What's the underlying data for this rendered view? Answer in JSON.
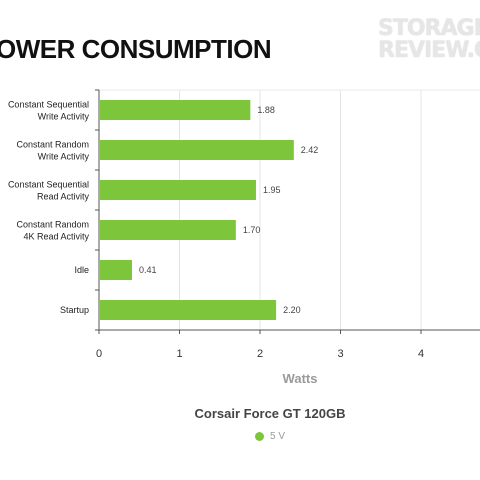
{
  "title": "OWER CONSUMPTION",
  "logo": {
    "line1": "STORAGE",
    "line2": "REVIEW.CO"
  },
  "chart_data": {
    "type": "bar",
    "orientation": "horizontal",
    "categories": [
      "Constant Sequential\nWrite Activity",
      "Constant Random\nWrite Activity",
      "Constant Sequential\nRead Activity",
      "Constant Random\n4K Read Activity",
      "Idle",
      "Startup"
    ],
    "series": [
      {
        "name": "5 V",
        "values": [
          1.88,
          2.42,
          1.95,
          1.7,
          0.41,
          2.2
        ],
        "color": "#7dc53b"
      }
    ],
    "xlabel": "Watts",
    "xlim": [
      0,
      5
    ],
    "xticks": [
      0,
      1,
      2,
      3,
      4
    ],
    "grid": true,
    "data_labels": true,
    "legend_title": "Corsair Force GT 120GB",
    "legend_position": "bottom"
  }
}
